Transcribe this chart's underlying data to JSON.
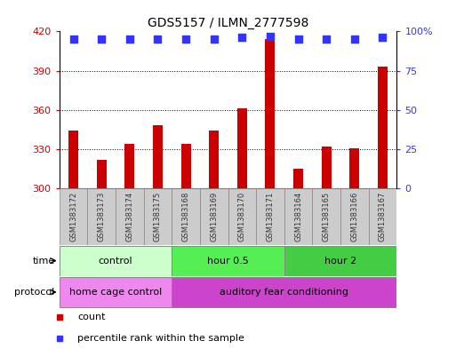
{
  "title": "GDS5157 / ILMN_2777598",
  "samples": [
    "GSM1383172",
    "GSM1383173",
    "GSM1383174",
    "GSM1383175",
    "GSM1383168",
    "GSM1383169",
    "GSM1383170",
    "GSM1383171",
    "GSM1383164",
    "GSM1383165",
    "GSM1383166",
    "GSM1383167"
  ],
  "counts": [
    344,
    322,
    334,
    348,
    334,
    344,
    361,
    414,
    315,
    332,
    331,
    393
  ],
  "percentile_ranks": [
    95,
    95,
    95,
    95,
    95,
    95,
    96,
    97,
    95,
    95,
    95,
    96
  ],
  "ylim_left": [
    300,
    420
  ],
  "ylim_right": [
    0,
    100
  ],
  "yticks_left": [
    300,
    330,
    360,
    390,
    420
  ],
  "yticks_right": [
    0,
    25,
    50,
    75,
    100
  ],
  "bar_color": "#cc0000",
  "dot_color": "#3333ff",
  "grid_color": "#000000",
  "time_groups": [
    {
      "label": "control",
      "start": 0,
      "end": 4,
      "color": "#ccffcc"
    },
    {
      "label": "hour 0.5",
      "start": 4,
      "end": 8,
      "color": "#55ee55"
    },
    {
      "label": "hour 2",
      "start": 8,
      "end": 12,
      "color": "#44cc44"
    }
  ],
  "protocol_groups": [
    {
      "label": "home cage control",
      "start": 0,
      "end": 4,
      "color": "#ee88ee"
    },
    {
      "label": "auditory fear conditioning",
      "start": 4,
      "end": 12,
      "color": "#cc44cc"
    }
  ],
  "xlabel_time": "time",
  "xlabel_protocol": "protocol",
  "legend_count_label": "count",
  "legend_percentile_label": "percentile rank within the sample",
  "bg_color": "#ffffff",
  "plot_bg_color": "#ffffff",
  "axis_color_left": "#cc0000",
  "axis_color_right": "#3333ff",
  "bar_width": 0.35,
  "sample_bg_color": "#cccccc",
  "spine_color": "#000000"
}
